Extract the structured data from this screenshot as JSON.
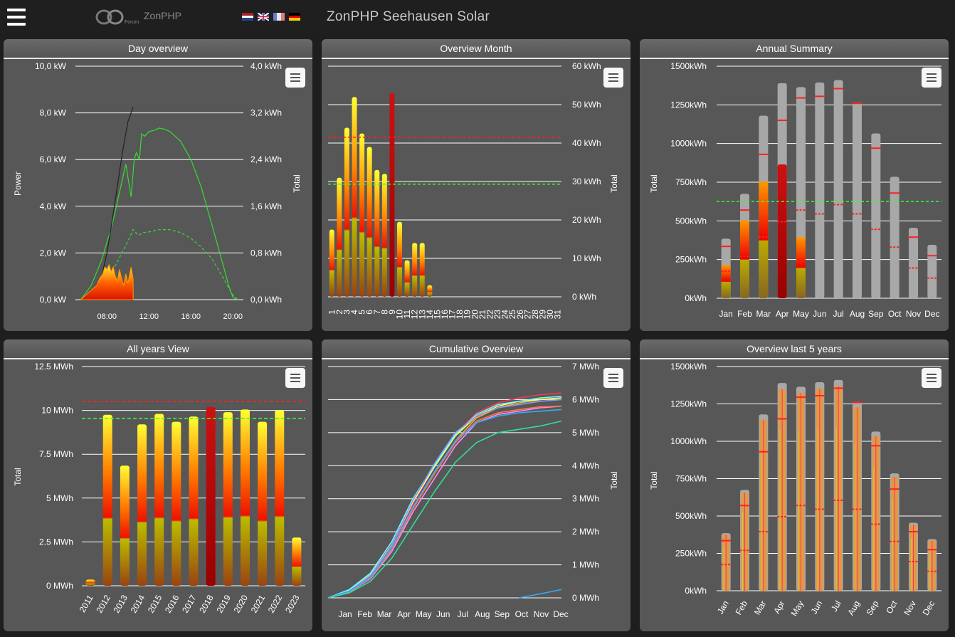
{
  "header": {
    "logo_text": "ZonPHP",
    "logo_sub": "Forum",
    "title": "ZonPHP Seehausen Solar",
    "languages": [
      "nl",
      "en",
      "fr",
      "de"
    ]
  },
  "icons": {
    "menu": "hamburger-menu-icon",
    "chart_menu": "chart-context-menu-icon",
    "logo": "infinity-logo-icon"
  },
  "colors": {
    "background": "#1e1e1e",
    "panel": "#575757",
    "grid": "#ffffff",
    "reference_red": "#ff2020",
    "reference_green": "#33ff33",
    "bar_gray": "#a8a8a8"
  },
  "panels": {
    "day": {
      "title": "Day overview"
    },
    "month": {
      "title": "Overview Month"
    },
    "annual": {
      "title": "Annual Summary"
    },
    "allyears": {
      "title": "All years View"
    },
    "cumulative": {
      "title": "Cumulative Overview"
    },
    "last5": {
      "title": "Overview last 5 years"
    }
  },
  "chart_data": [
    {
      "id": "day",
      "type": "area",
      "title": "Day overview",
      "ylabel": "Power",
      "y2label": "Total",
      "y_ticks": [
        "10,0 kW",
        "8,0 kW",
        "6,0 kW",
        "4,0 kW",
        "2,0 kW",
        "0,0 kW"
      ],
      "y2_ticks": [
        "4,0 kWh",
        "3,2 kWh",
        "2,4 kWh",
        "1,6 kWh",
        "0,8 kWh",
        "0,0 kWh"
      ],
      "x_ticks": [
        "08:00",
        "12:00",
        "16:00",
        "20:00"
      ],
      "ylim": [
        0,
        10
      ],
      "y2lim": [
        0,
        4
      ],
      "series": [
        {
          "name": "",
          "style": "reference-power",
          "color": "#33dd33",
          "unit": "kW",
          "x": [
            5.5,
            6.5,
            7.5,
            8.5,
            9.3,
            9.8,
            10.3,
            10.6,
            10.8,
            11.1,
            11.3,
            11.6,
            12.0,
            12.5,
            13.0,
            13.5,
            14.0,
            15.0,
            16.0,
            17.0,
            18.0,
            19.0,
            19.6,
            20.0,
            20.5
          ],
          "y": [
            0,
            0.6,
            1.7,
            3.2,
            4.8,
            5.8,
            4.4,
            6.0,
            6.3,
            6.0,
            7.1,
            7.0,
            7.2,
            7.25,
            7.35,
            7.3,
            7.2,
            6.8,
            6.0,
            4.8,
            3.2,
            1.6,
            0.6,
            0.1,
            0
          ]
        },
        {
          "name": "",
          "style": "reference-total",
          "color": "#33dd33",
          "unit": "kWh",
          "x": [
            5.5,
            7,
            8,
            9,
            10,
            10.5,
            11,
            11.5,
            12,
            13,
            14,
            15,
            16,
            17,
            18,
            19,
            19.6,
            20.1,
            20.5
          ],
          "y": [
            0,
            0.1,
            0.3,
            0.65,
            1.0,
            1.2,
            1.1,
            1.15,
            1.16,
            1.2,
            1.2,
            1.15,
            1.05,
            0.9,
            0.7,
            0.4,
            0.2,
            0.05,
            0
          ]
        },
        {
          "name": "",
          "style": "today-total",
          "color": "#222222",
          "unit": "kWh",
          "x": [
            5.5,
            6.5,
            7.5,
            8.0,
            8.5,
            9.0,
            9.5,
            10.0,
            10.5
          ],
          "y": [
            0,
            0.1,
            0.4,
            0.8,
            1.35,
            1.95,
            2.55,
            3.05,
            3.3
          ]
        },
        {
          "name": "",
          "style": "today-power",
          "color": "#ff8800",
          "unit": "kW",
          "x": [
            5.5,
            6.0,
            6.5,
            7.0,
            7.3,
            7.6,
            7.8,
            8.0,
            8.2,
            8.4,
            8.6,
            8.8,
            9.0,
            9.2,
            9.4,
            9.6,
            9.8,
            10.0,
            10.3,
            10.5
          ],
          "y": [
            0,
            0.2,
            0.4,
            0.6,
            0.9,
            1.1,
            1.4,
            1.3,
            1.5,
            1.2,
            1.4,
            1.0,
            0.8,
            1.3,
            0.9,
            0.6,
            1.1,
            0.7,
            1.4,
            0.9
          ]
        }
      ]
    },
    {
      "id": "month",
      "type": "bar",
      "title": "Overview Month",
      "y2label": "Total",
      "ylim": [
        0,
        60
      ],
      "y_ticks": [
        "60 kWh",
        "50 kWh",
        "40 kWh",
        "30 kWh",
        "20 kWh",
        "10 kWh",
        "0 kWh"
      ],
      "categories": [
        "1",
        "2",
        "3",
        "4",
        "5",
        "6",
        "7",
        "8",
        "9",
        "10",
        "11",
        "12",
        "13",
        "14",
        "15",
        "16",
        "17",
        "18",
        "19",
        "20",
        "21",
        "22",
        "23",
        "24",
        "25",
        "26",
        "27",
        "28",
        "29",
        "30",
        "31"
      ],
      "values": [
        17.5,
        31,
        44,
        52,
        42.5,
        39,
        33,
        32,
        53,
        19.5,
        9.5,
        14,
        14,
        3,
        0,
        0,
        0,
        0,
        0,
        0,
        0,
        0,
        0,
        0,
        0,
        0,
        0,
        0,
        0,
        0,
        0
      ],
      "max_line": 41.5,
      "avg_line": 29.3,
      "highlight_index": 8
    },
    {
      "id": "annual",
      "type": "bar",
      "title": "Annual Summary",
      "ylabel": "Total",
      "ylim": [
        0,
        1500
      ],
      "y_ticks": [
        "1500kWh",
        "1250kWh",
        "1000kWh",
        "750kWh",
        "500kWh",
        "250kWh",
        "0kWh"
      ],
      "categories": [
        "Jan",
        "Feb",
        "Mar",
        "Apr",
        "May",
        "Jun",
        "Jul",
        "Aug",
        "Sep",
        "Oct",
        "Nov",
        "Dec"
      ],
      "values": [
        215,
        505,
        755,
        865,
        395,
        0,
        0,
        0,
        0,
        0,
        0,
        0
      ],
      "max_values": [
        385,
        675,
        1180,
        1390,
        1365,
        1395,
        1410,
        1265,
        1065,
        785,
        455,
        345
      ],
      "markers_high": [
        335,
        570,
        930,
        1150,
        1295,
        1305,
        1355,
        1260,
        970,
        680,
        395,
        275
      ],
      "markers_low": [
        175,
        270,
        395,
        495,
        570,
        545,
        605,
        545,
        445,
        330,
        195,
        130
      ],
      "avg_line": 625
    },
    {
      "id": "allyears",
      "type": "bar",
      "title": "All years View",
      "ylabel": "Total",
      "ylim": [
        0,
        12.5
      ],
      "y_ticks": [
        "12.5 MWh",
        "10 MWh",
        "7.5 MWh",
        "5 MWh",
        "2.5 MWh",
        "0 MWh"
      ],
      "categories": [
        "2011",
        "2012",
        "2013",
        "2014",
        "2015",
        "2016",
        "2017",
        "2018",
        "2019",
        "2020",
        "2021",
        "2022",
        "2023"
      ],
      "values": [
        0.35,
        9.75,
        6.85,
        9.2,
        9.8,
        9.35,
        9.65,
        10.2,
        9.9,
        10.05,
        9.35,
        10.0,
        2.75
      ],
      "max_line": 10.5,
      "avg_line": 9.55,
      "highlight_index": 7
    },
    {
      "id": "cumulative",
      "type": "line",
      "title": "Cumulative Overview",
      "y2label": "Total",
      "ylim": [
        0,
        7
      ],
      "y_ticks": [
        "7 MWh",
        "6 MWh",
        "5 MWh",
        "4 MWh",
        "3 MWh",
        "2 MWh",
        "1 MWh",
        "0 MWh"
      ],
      "x_ticks": [
        "Jan",
        "Feb",
        "Mar",
        "Apr",
        "May",
        "Jun",
        "Jul",
        "Aug",
        "Sep",
        "Oct",
        "Nov",
        "Dec"
      ],
      "series": [
        {
          "color": "#ff3355",
          "values": [
            0,
            0.2,
            0.65,
            1.55,
            2.85,
            3.95,
            4.95,
            5.6,
            5.9,
            6.05,
            6.15,
            6.2
          ]
        },
        {
          "color": "#ffaa33",
          "values": [
            0,
            0.2,
            0.6,
            1.45,
            2.7,
            3.75,
            4.75,
            5.45,
            5.75,
            5.9,
            6.0,
            6.05
          ]
        },
        {
          "color": "#ffff66",
          "values": [
            0,
            0.22,
            0.7,
            1.6,
            2.9,
            3.95,
            4.9,
            5.5,
            5.8,
            5.95,
            6.0,
            6.05
          ]
        },
        {
          "color": "#66ffff",
          "values": [
            0,
            0.25,
            0.75,
            1.7,
            3.0,
            4.0,
            4.95,
            5.55,
            5.85,
            5.95,
            6.05,
            6.1
          ]
        },
        {
          "color": "#8899ff",
          "values": [
            0,
            0.21,
            0.68,
            1.58,
            2.95,
            4.05,
            5.0,
            5.5,
            5.75,
            5.85,
            5.95,
            6.0
          ]
        },
        {
          "color": "#ff88ff",
          "values": [
            0,
            0.18,
            0.58,
            1.4,
            2.6,
            3.6,
            4.6,
            5.3,
            5.55,
            5.65,
            5.75,
            5.8
          ]
        },
        {
          "color": "#ff7733",
          "values": [
            0,
            0.19,
            0.6,
            1.45,
            2.7,
            3.75,
            4.7,
            5.35,
            5.6,
            5.7,
            5.78,
            5.8
          ]
        },
        {
          "color": "#33aaff",
          "values": [
            0,
            0.2,
            0.62,
            1.5,
            2.75,
            3.8,
            4.75,
            5.3,
            5.5,
            5.6,
            5.65,
            5.7
          ]
        },
        {
          "color": "#33dd99",
          "values": [
            0,
            0.15,
            0.5,
            1.2,
            2.2,
            3.2,
            4.1,
            4.7,
            5.0,
            5.1,
            5.2,
            5.35
          ]
        },
        {
          "color": "#33aaff",
          "values": [
            null,
            null,
            null,
            null,
            null,
            null,
            null,
            null,
            null,
            0.0,
            0.12,
            0.25
          ]
        }
      ]
    },
    {
      "id": "last5",
      "type": "bar",
      "title": "Overview last 5 years",
      "ylabel": "Total",
      "ylim": [
        0,
        1500
      ],
      "y_ticks": [
        "1500kWh",
        "1250kWh",
        "1000kWh",
        "750kWh",
        "500kWh",
        "250kWh",
        "0kWh"
      ],
      "categories": [
        "Jan",
        "Feb",
        "Mar",
        "Apr",
        "May",
        "Jun",
        "Jul",
        "Aug",
        "Sep",
        "Oct",
        "Nov",
        "Dec"
      ],
      "max_values": [
        385,
        675,
        1180,
        1390,
        1365,
        1395,
        1410,
        1265,
        1065,
        785,
        455,
        345
      ],
      "markers_high": [
        335,
        570,
        930,
        1150,
        1295,
        1305,
        1355,
        1260,
        970,
        680,
        395,
        275
      ],
      "markers_low": [
        175,
        270,
        395,
        495,
        570,
        545,
        605,
        545,
        445,
        330,
        195,
        130
      ]
    }
  ]
}
